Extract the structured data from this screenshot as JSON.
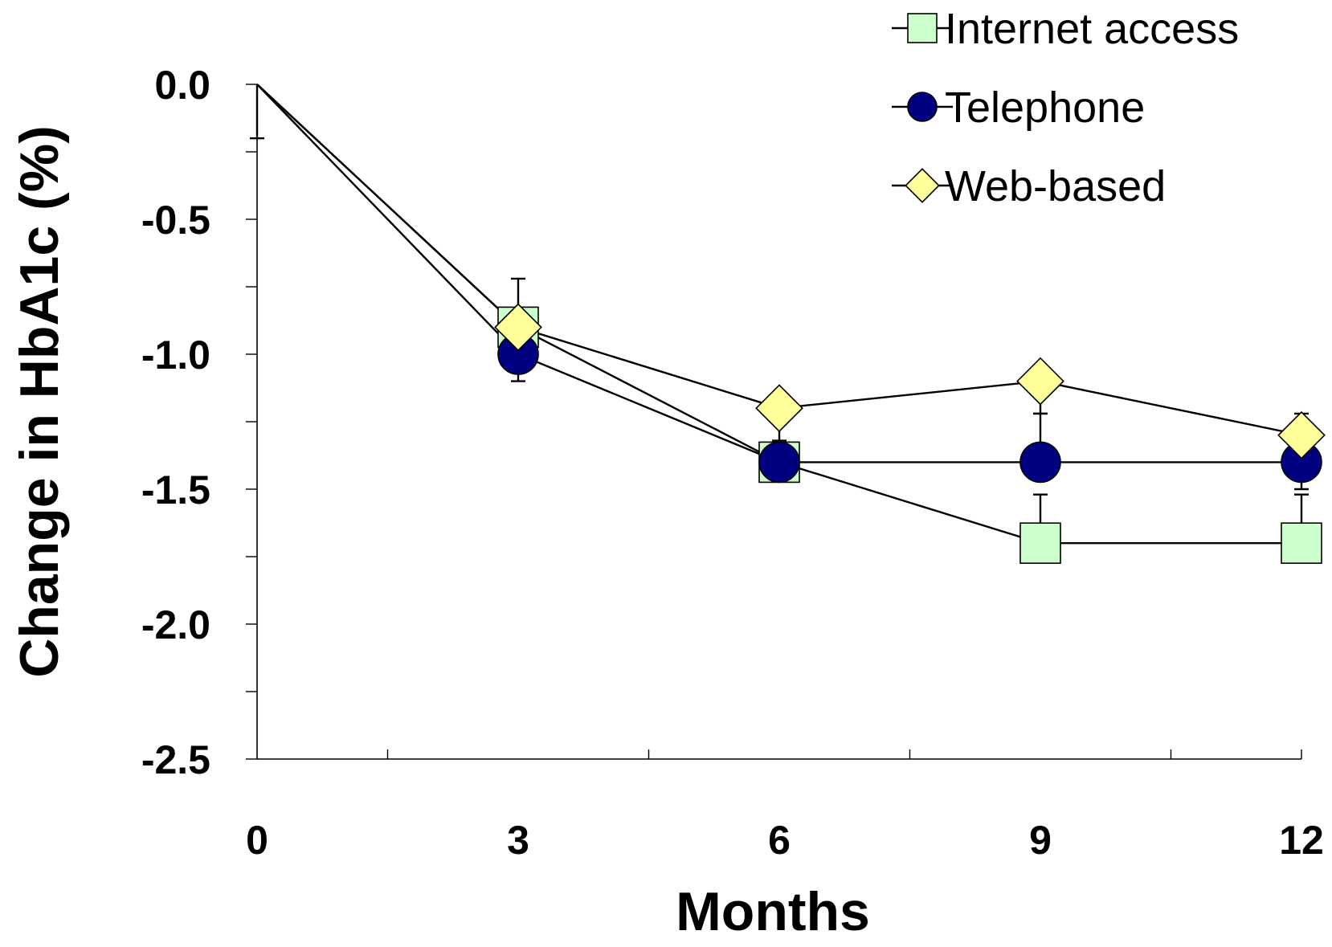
{
  "chart_data": {
    "type": "line",
    "xlabel": "Months",
    "ylabel": "Change in HbA1c (%)",
    "x": [
      0,
      3,
      6,
      9,
      12
    ],
    "x_tick_labels": [
      "0",
      "3",
      "6",
      "9",
      "12"
    ],
    "xlim": [
      0,
      12
    ],
    "ylim": [
      -2.5,
      0
    ],
    "y_tick_labels": [
      "0.0",
      "-0.5",
      "-1.0",
      "-1.5",
      "-2.0",
      "-2.5"
    ],
    "y_ticks": [
      0,
      -0.5,
      -1.0,
      -1.5,
      -2.0,
      -2.5
    ],
    "y_minor_ticks": [
      -0.25,
      -0.75,
      -1.25,
      -1.75,
      -2.25
    ],
    "x_minor_ticks": [
      1.5,
      4.5,
      7.5,
      10.5
    ],
    "grid": false,
    "legend_position": "top-right",
    "series": [
      {
        "name": "Internet access",
        "marker": "square",
        "color": "#ccffcc",
        "values": [
          0,
          -0.9,
          -1.4,
          -1.7,
          -1.7
        ],
        "error_up": [
          0,
          0,
          0,
          0.18,
          0.18
        ],
        "error_down": [
          0.2,
          0,
          0,
          0,
          0
        ]
      },
      {
        "name": "Telephone",
        "marker": "circle",
        "color": "#000080",
        "values": [
          0,
          -1.0,
          -1.4,
          -1.4,
          -1.4
        ],
        "error_up": [
          0,
          0,
          0,
          0.18,
          0
        ],
        "error_down": [
          0,
          0.1,
          0,
          0,
          0.1
        ]
      },
      {
        "name": "Web-based",
        "marker": "diamond",
        "color": "#ffff99",
        "values": [
          0,
          -0.9,
          -1.2,
          -1.1,
          -1.3
        ],
        "error_up": [
          0,
          0.18,
          0,
          0,
          0.08
        ],
        "error_down": [
          0,
          0,
          0.12,
          0.12,
          0
        ]
      }
    ]
  }
}
